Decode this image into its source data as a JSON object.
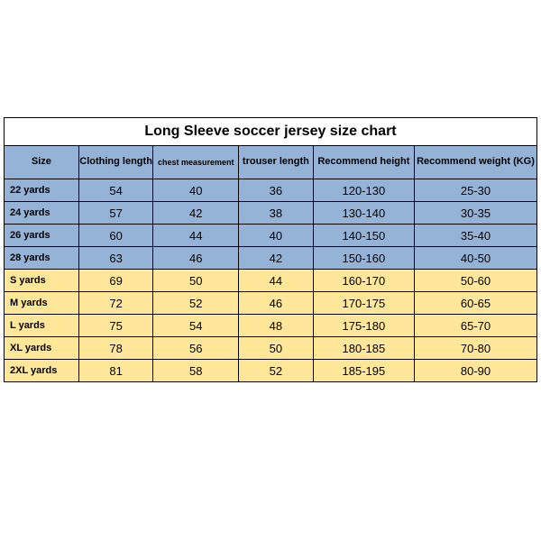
{
  "title": "Long Sleeve soccer jersey size chart",
  "columns": [
    "Size",
    "Clothing length",
    "chest measurement",
    "trouser length",
    "Recommend height",
    "Recommend weight (KG)"
  ],
  "col_widths": [
    "14%",
    "14%",
    "16%",
    "14%",
    "19%",
    "23%"
  ],
  "header_bg": "#95b3d7",
  "blue_bg": "#95b3d7",
  "yellow_bg": "#ffe699",
  "rows": [
    {
      "c": "blue",
      "v": [
        "22 yards",
        "54",
        "40",
        "36",
        "120-130",
        "25-30"
      ]
    },
    {
      "c": "blue",
      "v": [
        "24 yards",
        "57",
        "42",
        "38",
        "130-140",
        "30-35"
      ]
    },
    {
      "c": "blue",
      "v": [
        "26 yards",
        "60",
        "44",
        "40",
        "140-150",
        "35-40"
      ]
    },
    {
      "c": "blue",
      "v": [
        "28 yards",
        "63",
        "46",
        "42",
        "150-160",
        "40-50"
      ]
    },
    {
      "c": "yellow",
      "v": [
        "S yards",
        "69",
        "50",
        "44",
        "160-170",
        "50-60"
      ]
    },
    {
      "c": "yellow",
      "v": [
        "M yards",
        "72",
        "52",
        "46",
        "170-175",
        "60-65"
      ]
    },
    {
      "c": "yellow",
      "v": [
        "L yards",
        "75",
        "54",
        "48",
        "175-180",
        "65-70"
      ]
    },
    {
      "c": "yellow",
      "v": [
        "XL yards",
        "78",
        "56",
        "50",
        "180-185",
        "70-80"
      ]
    },
    {
      "c": "yellow",
      "v": [
        "2XL yards",
        "81",
        "58",
        "52",
        "185-195",
        "80-90"
      ]
    }
  ]
}
